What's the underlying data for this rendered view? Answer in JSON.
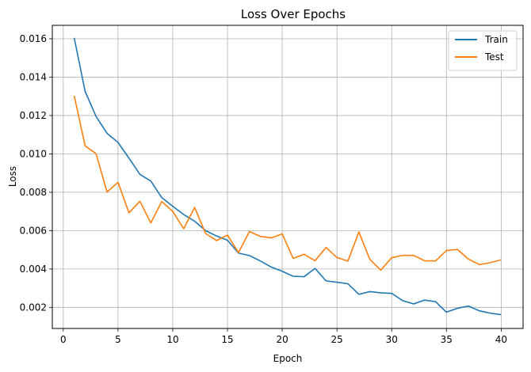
{
  "chart_data": {
    "type": "line",
    "title": "Loss Over Epochs",
    "xlabel": "Epoch",
    "ylabel": "Loss",
    "xlim": [
      -1,
      42
    ],
    "ylim": [
      0.0009,
      0.0167
    ],
    "xticks": [
      0,
      5,
      10,
      15,
      20,
      25,
      30,
      35,
      40
    ],
    "xtick_labels": [
      "0",
      "5",
      "10",
      "15",
      "20",
      "25",
      "30",
      "35",
      "40"
    ],
    "yticks": [
      0.002,
      0.004,
      0.006,
      0.008,
      0.01,
      0.012,
      0.014,
      0.016
    ],
    "ytick_labels": [
      "0.002",
      "0.004",
      "0.006",
      "0.008",
      "0.010",
      "0.012",
      "0.014",
      "0.016"
    ],
    "grid": true,
    "legend_position": "top-right",
    "x": [
      1,
      2,
      3,
      4,
      5,
      6,
      7,
      8,
      9,
      10,
      11,
      12,
      13,
      14,
      15,
      16,
      17,
      18,
      19,
      20,
      21,
      22,
      23,
      24,
      25,
      26,
      27,
      28,
      29,
      30,
      31,
      32,
      33,
      34,
      35,
      36,
      37,
      38,
      39,
      40
    ],
    "series": [
      {
        "name": "Train",
        "color": "#1f77b4",
        "values": [
          0.01605,
          0.01325,
          0.01195,
          0.01107,
          0.0106,
          0.00978,
          0.00893,
          0.00858,
          0.00772,
          0.00727,
          0.00684,
          0.00649,
          0.006,
          0.00572,
          0.0055,
          0.00483,
          0.0047,
          0.00442,
          0.0041,
          0.00388,
          0.00362,
          0.0036,
          0.00403,
          0.00338,
          0.00331,
          0.00323,
          0.00268,
          0.00282,
          0.00276,
          0.00273,
          0.00235,
          0.00218,
          0.00238,
          0.0023,
          0.00175,
          0.00195,
          0.00207,
          0.00182,
          0.0017,
          0.00162
        ]
      },
      {
        "name": "Test",
        "color": "#ff7f0e",
        "values": [
          0.01303,
          0.01042,
          0.01001,
          0.00801,
          0.00852,
          0.00693,
          0.00753,
          0.0064,
          0.00752,
          0.007,
          0.0061,
          0.00721,
          0.00585,
          0.00548,
          0.00577,
          0.00485,
          0.00595,
          0.0057,
          0.00562,
          0.00583,
          0.00455,
          0.00477,
          0.00443,
          0.00512,
          0.0046,
          0.00441,
          0.00593,
          0.0045,
          0.00394,
          0.00459,
          0.00471,
          0.00471,
          0.00443,
          0.00442,
          0.00496,
          0.00502,
          0.00452,
          0.00423,
          0.00433,
          0.00448
        ]
      }
    ]
  }
}
